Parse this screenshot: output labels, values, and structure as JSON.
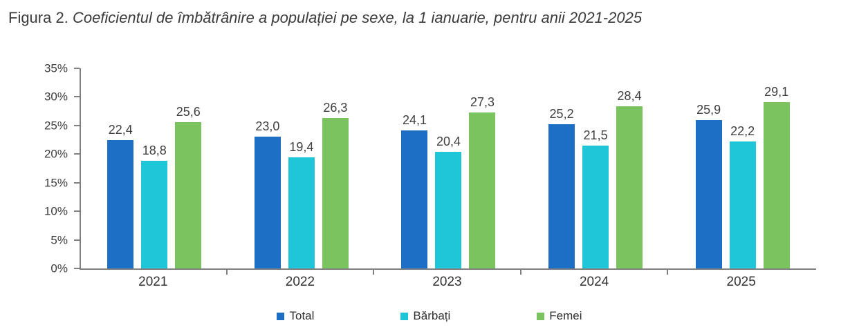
{
  "figure": {
    "number": "Figura 2.",
    "caption": "Coeficientul de îmbătrânire a populației pe sexe, la 1 ianuarie, pentru anii 2021-2025"
  },
  "chart_data": {
    "type": "bar",
    "title": "Coeficientul de îmbătrânire a populației pe sexe, la 1 ianuarie, pentru anii 2021-2025",
    "categories": [
      "2021",
      "2022",
      "2023",
      "2024",
      "2025"
    ],
    "series": [
      {
        "name": "Total",
        "color": "#1C6FC4",
        "values": [
          22.4,
          23.0,
          24.1,
          25.2,
          25.9
        ],
        "labels": [
          "22,4",
          "23,0",
          "24,1",
          "25,2",
          "25,9"
        ]
      },
      {
        "name": "Bărbați",
        "color": "#1EC6D7",
        "values": [
          18.8,
          19.4,
          20.4,
          21.5,
          22.2
        ],
        "labels": [
          "18,8",
          "19,4",
          "20,4",
          "21,5",
          "22,2"
        ]
      },
      {
        "name": "Femei",
        "color": "#7AC35E",
        "values": [
          25.6,
          26.3,
          27.3,
          28.4,
          29.1
        ],
        "labels": [
          "25,6",
          "26,3",
          "27,3",
          "28,4",
          "29,1"
        ]
      }
    ],
    "ylim": [
      0,
      35
    ],
    "ytick_step": 5,
    "ytick_labels": [
      "0%",
      "5%",
      "10%",
      "15%",
      "20%",
      "25%",
      "30%",
      "35%"
    ],
    "xlabel": "",
    "ylabel": "",
    "grid": false,
    "data_labels": true,
    "legend_position": "bottom",
    "legend": [
      "Total",
      "Bărbați",
      "Femei"
    ]
  },
  "style": {
    "axis_color": "#808080",
    "text_color": "#3f3f3f",
    "title_color": "#3b3b3a"
  }
}
